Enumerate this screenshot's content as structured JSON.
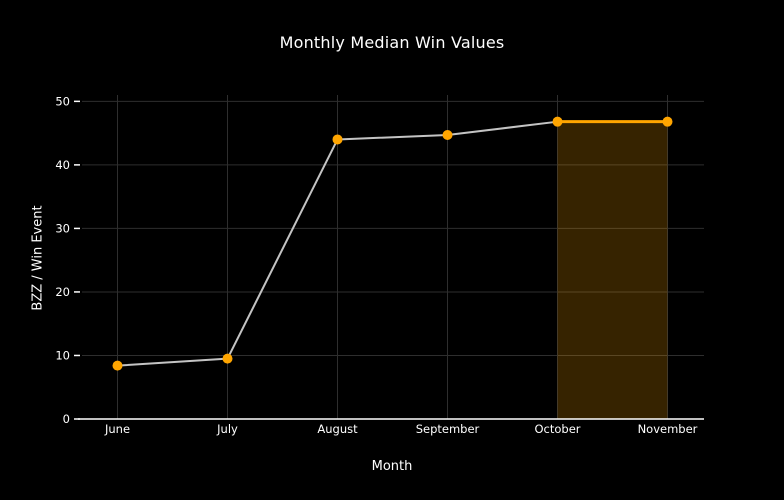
{
  "chart_data": {
    "type": "line",
    "title": "Monthly Median Win Values",
    "xlabel": "Month",
    "ylabel": "BZZ / Win Event",
    "categories": [
      "June",
      "July",
      "August",
      "September",
      "October",
      "November"
    ],
    "values": [
      8.4,
      9.5,
      44.0,
      44.7,
      46.8,
      46.8
    ],
    "y_ticks": [
      0,
      10,
      20,
      30,
      40,
      50
    ],
    "ylim": [
      0,
      51
    ],
    "grid": true,
    "legend": false,
    "highlight_region": {
      "from": "October",
      "to": "November",
      "style": "shaded-area-under-line"
    },
    "colors": {
      "background": "#000000",
      "text": "#ffffff",
      "line": "#c4c4c4",
      "marker": "#ffa500",
      "highlight_line": "#ffa500",
      "highlight_fill": "rgba(255,165,0,0.21)",
      "gridline": "#2e2e2e",
      "axis_line": "#ffffff"
    }
  }
}
